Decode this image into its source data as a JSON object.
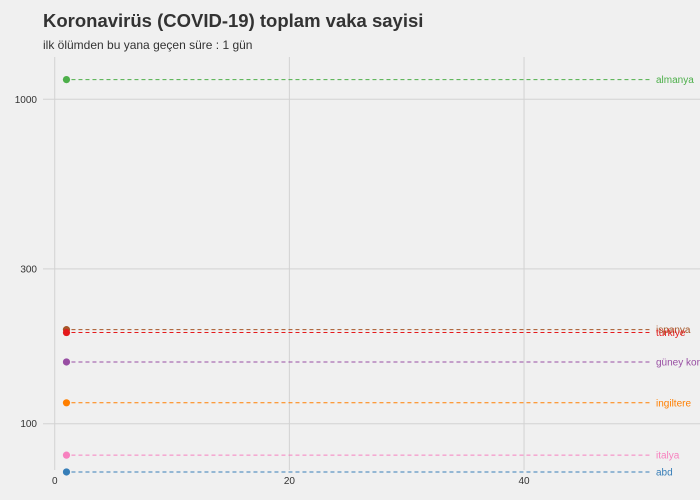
{
  "title": "Koronavirüs (COVID-19) toplam vaka sayisi",
  "subtitle": "ilk ölümden bu yana geçen süre : 1 gün",
  "chart_data": {
    "type": "scatter",
    "title": "Koronavirüs (COVID-19) toplam vaka sayisi",
    "subtitle": "ilk ölümden bu yana geçen süre : 1 gün",
    "xlabel": "",
    "ylabel": "",
    "y_scale": "log",
    "xlim": [
      -1,
      55
    ],
    "ylim": [
      72,
      1350
    ],
    "x_ticks": [
      0,
      20,
      40
    ],
    "y_ticks": [
      100,
      300,
      1000
    ],
    "grid": true,
    "legend": "direct labels at right end of each reference line",
    "series": [
      {
        "name": "almanya",
        "x": 1,
        "y": 1150,
        "color": "#4daf4a"
      },
      {
        "name": "ispanya",
        "x": 1,
        "y": 195,
        "color": "#a65628"
      },
      {
        "name": "türkiye",
        "x": 1,
        "y": 191,
        "color": "#e41a1c"
      },
      {
        "name": "güney kore",
        "x": 1,
        "y": 155,
        "color": "#984ea3"
      },
      {
        "name": "ingiltere",
        "x": 1,
        "y": 116,
        "color": "#ff7f00"
      },
      {
        "name": "italya",
        "x": 1,
        "y": 80,
        "color": "#f781bf"
      },
      {
        "name": "abd",
        "x": 1,
        "y": 71,
        "color": "#377eb8"
      }
    ]
  }
}
